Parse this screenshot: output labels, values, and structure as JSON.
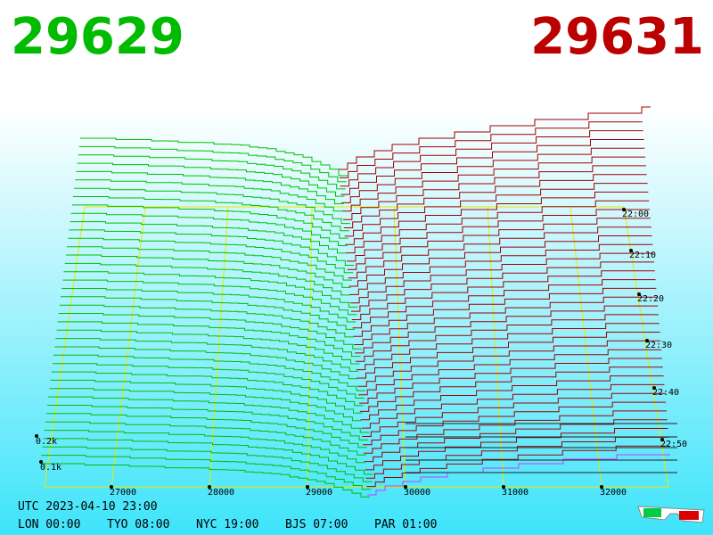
{
  "header": {
    "bid": "29629",
    "ask": "29631"
  },
  "axis": {
    "price_labels": [
      "27000",
      "28000",
      "29000",
      "30000",
      "31000",
      "32000"
    ],
    "time_labels": [
      "22:00",
      "22:10",
      "22:20",
      "22:30",
      "22:40",
      "22:50"
    ],
    "depth_labels": [
      "0.2k",
      "0.1k"
    ]
  },
  "footer": {
    "utc": "UTC 2023-04-10 23:00",
    "clocks": [
      "LON 00:00",
      "TYO 08:00",
      "NYC 19:00",
      "BJS 07:00",
      "PAR 01:00"
    ]
  }
}
